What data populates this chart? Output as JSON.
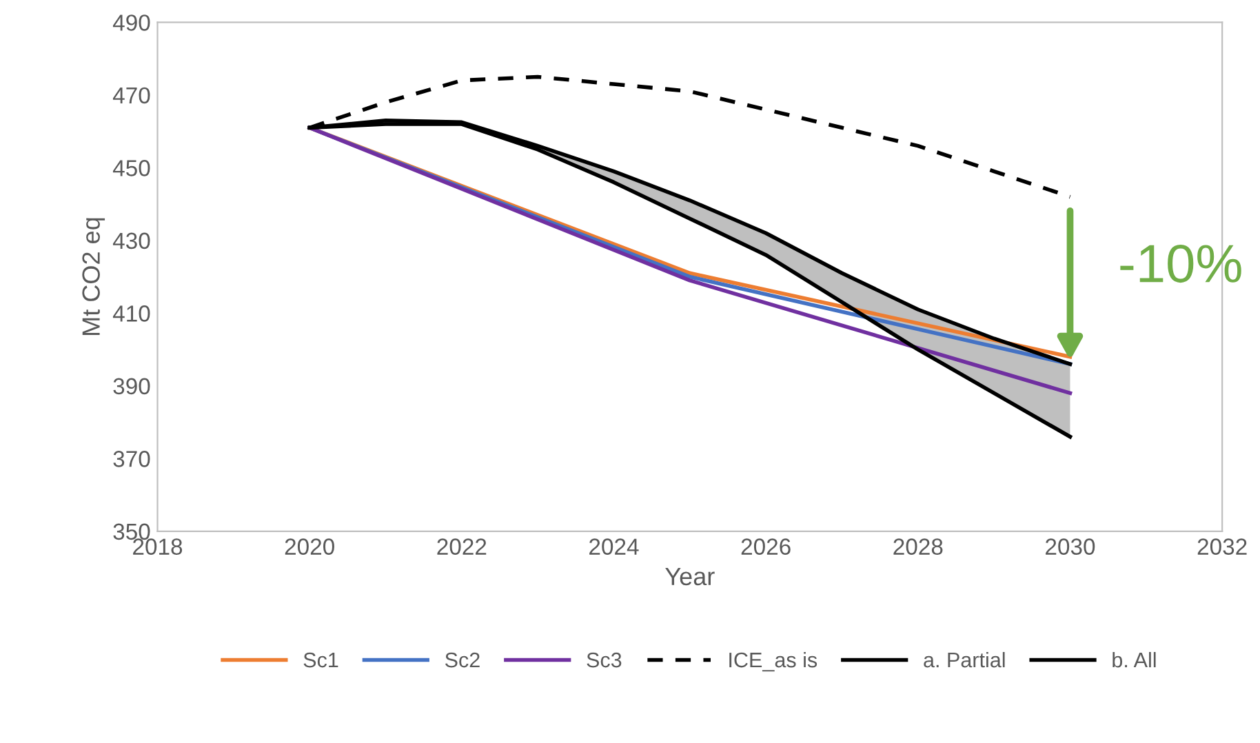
{
  "chart_data": {
    "type": "line",
    "xlabel": "Year",
    "ylabel": "Mt CO2 eq",
    "xlim": [
      2018,
      2032
    ],
    "xticks": [
      2018,
      2020,
      2022,
      2024,
      2026,
      2028,
      2030,
      2032
    ],
    "ylim": [
      350,
      490
    ],
    "yticks": [
      350,
      370,
      390,
      410,
      430,
      450,
      470,
      490
    ],
    "grid": false,
    "legend": "bottom",
    "marker": "none",
    "series": [
      {
        "name": "Sc1",
        "color": "#ed7d31",
        "x": [
          2020,
          2025,
          2030
        ],
        "values": [
          461,
          421,
          398
        ]
      },
      {
        "name": "Sc2",
        "color": "#4472c4",
        "x": [
          2020,
          2025,
          2030
        ],
        "values": [
          461,
          420,
          396
        ]
      },
      {
        "name": "Sc3",
        "color": "#7030a0",
        "x": [
          2020,
          2025,
          2030
        ],
        "values": [
          461,
          419,
          388
        ]
      },
      {
        "name": "ICE_as is",
        "color": "#000000",
        "line_style": "dashed",
        "x": [
          2020,
          2021,
          2022,
          2023,
          2024,
          2025,
          2026,
          2027,
          2028,
          2029,
          2030
        ],
        "values": [
          461,
          468,
          474,
          475,
          473,
          471,
          466,
          461,
          456,
          449,
          442
        ]
      },
      {
        "name": "a. Partial",
        "color": "#000000",
        "x": [
          2020,
          2021,
          2022,
          2023,
          2024,
          2025,
          2026,
          2027,
          2028,
          2029,
          2030
        ],
        "values": [
          461,
          463,
          462.5,
          456,
          449,
          441,
          432,
          421,
          411,
          403,
          396
        ],
        "lower": [
          461,
          462,
          462,
          455,
          446,
          436,
          426,
          413,
          400,
          388,
          376
        ],
        "upper": [
          461,
          463,
          462.5,
          456,
          449,
          441,
          432,
          421,
          411,
          403,
          396
        ]
      },
      {
        "name": "b. All",
        "color": "#000000",
        "x": [
          2020,
          2021,
          2022,
          2023,
          2024,
          2025,
          2026,
          2027,
          2028,
          2029,
          2030
        ],
        "values": [
          461,
          462,
          462,
          455,
          446,
          436,
          426,
          413,
          400,
          388,
          376
        ]
      }
    ],
    "annotations": [
      {
        "text": "-10%",
        "x": 2030,
        "y": 396
      }
    ]
  }
}
